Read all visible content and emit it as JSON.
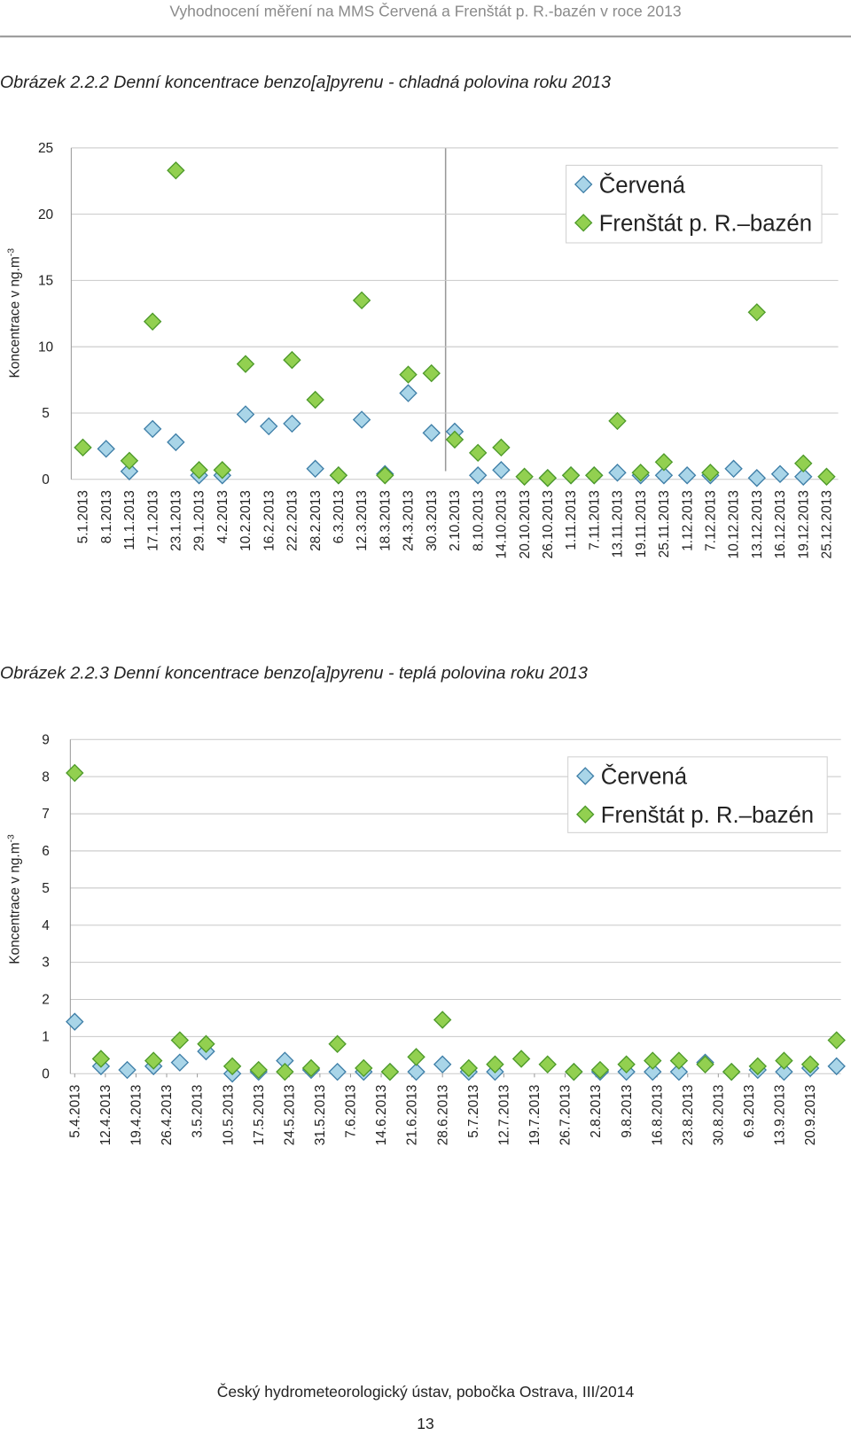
{
  "header": "Vyhodnocení měření na MMS Červená a Frenštát p. R.-bazén v roce 2013",
  "footer": "Český hydrometeorologický ústav, pobočka Ostrava, III/2014",
  "page_number": "13",
  "chart_data": [
    {
      "type": "scatter",
      "title": "Obrázek  2.2.2 Denní koncentrace benzo[a]pyrenu - chladná polovina roku 2013",
      "ylabel": "Koncentrace v ng.m",
      "ylabel_sup": "-3",
      "categories": [
        "5.1.2013",
        "8.1.2013",
        "11.1.2013",
        "17.1.2013",
        "23.1.2013",
        "29.1.2013",
        "4.2.2013",
        "10.2.2013",
        "16.2.2013",
        "22.2.2013",
        "28.2.2013",
        "6.3.2013",
        "12.3.2013",
        "18.3.2013",
        "24.3.2013",
        "30.3.2013",
        "2.10.2013",
        "8.10.2013",
        "14.10.2013",
        "20.10.2013",
        "26.10.2013",
        "1.11.2013",
        "7.11.2013",
        "13.11.2013",
        "19.11.2013",
        "25.11.2013",
        "1.12.2013",
        "7.12.2013",
        "10.12.2013",
        "13.12.2013",
        "16.12.2013",
        "19.12.2013",
        "25.12.2013"
      ],
      "series": [
        {
          "name": "Červená",
          "color": "#a9d5e8",
          "edge": "#3f7fa8",
          "values": [
            null,
            2.3,
            0.6,
            3.8,
            2.8,
            0.3,
            0.3,
            4.9,
            4.0,
            4.2,
            0.8,
            0.3,
            4.5,
            0.4,
            6.5,
            3.5,
            3.6,
            0.3,
            0.7,
            null,
            0.1,
            0.3,
            0.3,
            0.5,
            0.3,
            0.3,
            0.3,
            0.3,
            0.8,
            0.1,
            0.4,
            0.2,
            null
          ]
        },
        {
          "name": "Frenštát p. R.–bazén",
          "color": "#92d050",
          "edge": "#4e9a2a",
          "values": [
            2.4,
            null,
            1.4,
            11.9,
            23.3,
            0.7,
            0.7,
            8.7,
            null,
            9.0,
            6.0,
            0.3,
            13.5,
            0.3,
            7.9,
            8.0,
            3.0,
            2.0,
            2.4,
            0.2,
            0.1,
            0.3,
            0.3,
            4.4,
            0.5,
            1.3,
            null,
            0.5,
            null,
            12.6,
            null,
            1.2,
            0.2
          ]
        }
      ],
      "ylim": [
        0,
        25
      ],
      "yticks": [
        0,
        5,
        10,
        15,
        20,
        25
      ],
      "grid": true,
      "legend": "upper right"
    },
    {
      "type": "scatter",
      "title": "Obrázek 2.2.3 Denní koncentrace benzo[a]pyrenu - teplá polovina roku 2013",
      "ylabel": "Koncentrace v ng.m",
      "ylabel_sup": "-3",
      "x": [
        "5.4.2013",
        "11.4.2013",
        "17.4.2013",
        "23.4.2013",
        "29.4.2013",
        "5.5.2013",
        "11.5.2013",
        "17.5.2013",
        "23.5.2013",
        "29.5.2013",
        "4.6.2013",
        "10.6.2013",
        "16.6.2013",
        "22.6.2013",
        "28.6.2013",
        "4.7.2013",
        "10.7.2013",
        "16.7.2013",
        "22.7.2013",
        "28.7.2013",
        "3.8.2013",
        "9.8.2013",
        "15.8.2013",
        "21.8.2013",
        "27.8.2013",
        "2.9.2013",
        "8.9.2013",
        "14.9.2013",
        "20.9.2013",
        "26.9.2013"
      ],
      "xlim": [
        "4.4.2013",
        "27.9.2013"
      ],
      "xticks": [
        "5.4.2013",
        "12.4.2013",
        "19.4.2013",
        "26.4.2013",
        "3.5.2013",
        "10.5.2013",
        "17.5.2013",
        "24.5.2013",
        "31.5.2013",
        "7.6.2013",
        "14.6.2013",
        "21.6.2013",
        "28.6.2013",
        "5.7.2013",
        "12.7.2013",
        "19.7.2013",
        "26.7.2013",
        "2.8.2013",
        "9.8.2013",
        "16.8.2013",
        "23.8.2013",
        "30.8.2013",
        "6.9.2013",
        "13.9.2013",
        "20.9.2013"
      ],
      "series": [
        {
          "name": "Červená",
          "color": "#a9d5e8",
          "edge": "#3f7fa8",
          "values": [
            1.4,
            0.2,
            0.1,
            0.2,
            0.3,
            0.6,
            0.0,
            0.05,
            0.35,
            0.1,
            0.05,
            0.05,
            0.05,
            0.05,
            0.25,
            0.05,
            0.05,
            null,
            null,
            0.05,
            0.05,
            0.05,
            0.05,
            0.05,
            0.3,
            0.05,
            0.1,
            0.05,
            0.15,
            0.2
          ]
        },
        {
          "name": "Frenštát p. R.–bazén",
          "color": "#92d050",
          "edge": "#4e9a2a",
          "values": [
            8.1,
            0.4,
            null,
            0.35,
            0.9,
            0.8,
            0.2,
            0.1,
            0.05,
            0.15,
            0.8,
            0.15,
            0.05,
            0.45,
            1.45,
            0.15,
            0.25,
            0.4,
            0.25,
            0.05,
            0.1,
            0.25,
            0.35,
            0.35,
            0.25,
            0.05,
            0.2,
            0.35,
            0.25,
            0.9
          ]
        }
      ],
      "ylim": [
        0,
        9
      ],
      "yticks": [
        0,
        1,
        2,
        3,
        4,
        5,
        6,
        7,
        8,
        9
      ],
      "grid": true,
      "legend": "upper right"
    }
  ]
}
